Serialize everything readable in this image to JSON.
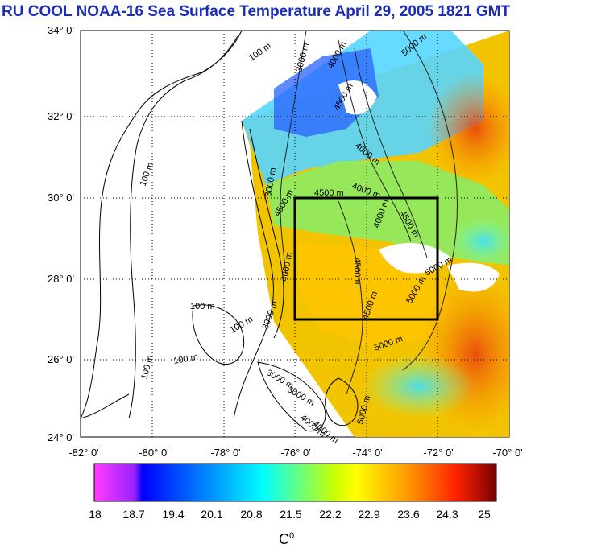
{
  "title": "RU COOL  NOAA-16 Sea Surface Temperature April 29, 2005 1821 GMT",
  "y_ticks": [
    "34° 0'",
    "32° 0'",
    "30° 0'",
    "28° 0'",
    "26° 0'",
    "24° 0'"
  ],
  "x_ticks": [
    "-82° 0'",
    "-80° 0'",
    "-78° 0'",
    "-76° 0'",
    "-74° 0'",
    "-72° 0'",
    "-70° 0'"
  ],
  "contour_labels": [
    "100 m",
    "100 m",
    "100 m",
    "100 m",
    "100 m",
    "100 m",
    "3000 m",
    "4000 m",
    "4500 m",
    "3000 m",
    "4000 m",
    "4500 m",
    "4500 m",
    "4000 m",
    "4500 m",
    "4000 m",
    "5000 m",
    "5000 m",
    "4500 m",
    "4500 m",
    "5000 m",
    "3000 m",
    "4000 m",
    "5000 m",
    "5000 m",
    "3000 m",
    "3000 m",
    "4000 m",
    "4000 m"
  ],
  "colorbar": {
    "labels": [
      "18",
      "18.7",
      "19.4",
      "20.1",
      "20.8",
      "21.5",
      "22.2",
      "22.9",
      "23.6",
      "24.3",
      "25"
    ],
    "unit_base": "C",
    "unit_sup": "0",
    "colors": [
      "#ff3cff",
      "#0000ff",
      "#00ffff",
      "#ffff00",
      "#ff8000",
      "#ff0000",
      "#7a0000"
    ]
  },
  "map": {
    "lat_range": [
      24,
      34
    ],
    "lon_range": [
      -82,
      -70
    ],
    "study_box": {
      "lon_min": -76,
      "lon_max": -72,
      "lat_min": 27,
      "lat_max": 30
    },
    "grid": "dotted",
    "frame_color": "#000000"
  }
}
